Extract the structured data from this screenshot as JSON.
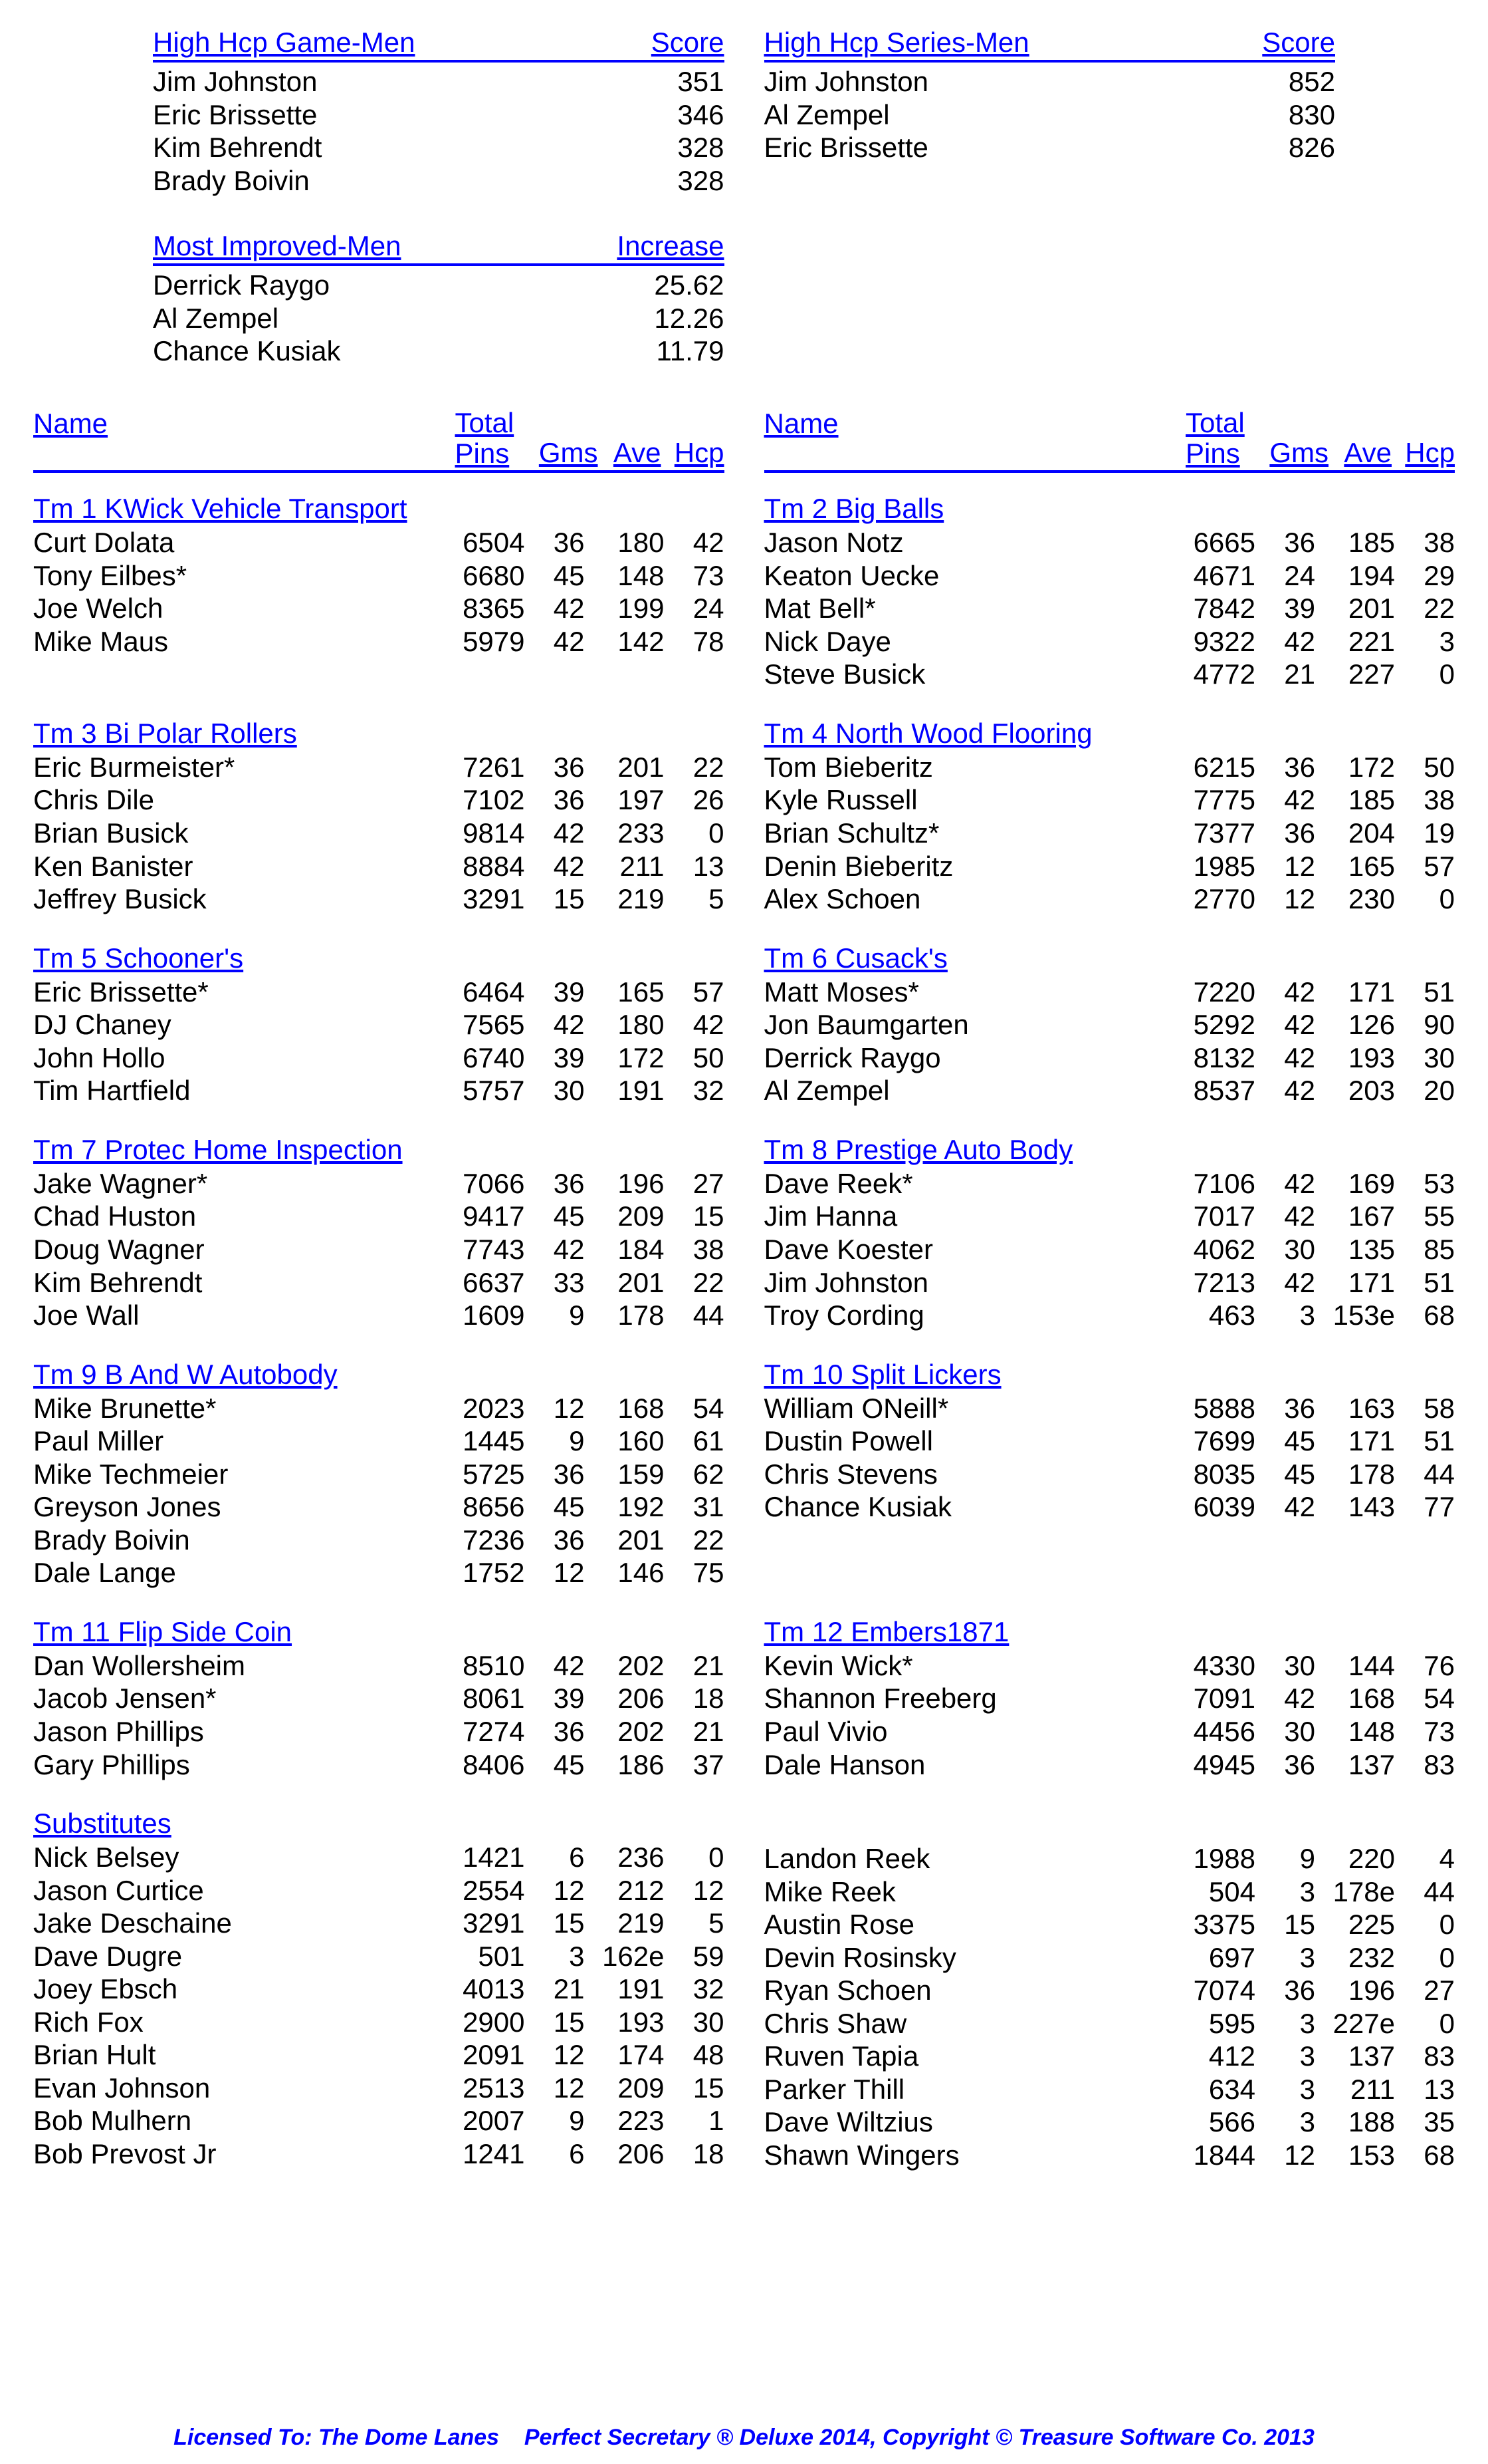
{
  "hhg_men": {
    "title_left": "High Hcp Game-Men",
    "title_right": "Score",
    "rows": [
      {
        "name": "Jim Johnston",
        "score": "351"
      },
      {
        "name": "Eric Brissette",
        "score": "346"
      },
      {
        "name": "Kim Behrendt",
        "score": "328"
      },
      {
        "name": "Brady Boivin",
        "score": "328"
      }
    ]
  },
  "hhs_men": {
    "title_left": "High Hcp Series-Men",
    "title_right": "Score",
    "rows": [
      {
        "name": "Jim Johnston",
        "score": "852"
      },
      {
        "name": "Al Zempel",
        "score": "830"
      },
      {
        "name": "Eric Brissette",
        "score": "826"
      }
    ]
  },
  "improved": {
    "title_left": "Most Improved-Men",
    "title_right": "Increase",
    "rows": [
      {
        "name": "Derrick Raygo",
        "val": "25.62"
      },
      {
        "name": "Al Zempel",
        "val": "12.26"
      },
      {
        "name": "Chance Kusiak",
        "val": "11.79"
      }
    ]
  },
  "stats_header": {
    "name": "Name",
    "total": "Total",
    "pins": "Pins",
    "gms": "Gms",
    "ave": "Ave",
    "hcp": "Hcp"
  },
  "team_rows": [
    {
      "left": {
        "name": "Tm 1 KWick Vehicle Transport",
        "players": [
          {
            "name": "Curt Dolata",
            "pins": "6504",
            "gms": "36",
            "ave": "180",
            "hcp": "42"
          },
          {
            "name": "Tony Eilbes*",
            "pins": "6680",
            "gms": "45",
            "ave": "148",
            "hcp": "73"
          },
          {
            "name": "Joe Welch",
            "pins": "8365",
            "gms": "42",
            "ave": "199",
            "hcp": "24"
          },
          {
            "name": "Mike Maus",
            "pins": "5979",
            "gms": "42",
            "ave": "142",
            "hcp": "78"
          }
        ]
      },
      "right": {
        "name": "Tm 2 Big Balls",
        "players": [
          {
            "name": "Jason Notz",
            "pins": "6665",
            "gms": "36",
            "ave": "185",
            "hcp": "38"
          },
          {
            "name": "Keaton Uecke",
            "pins": "4671",
            "gms": "24",
            "ave": "194",
            "hcp": "29"
          },
          {
            "name": "Mat Bell*",
            "pins": "7842",
            "gms": "39",
            "ave": "201",
            "hcp": "22"
          },
          {
            "name": "Nick Daye",
            "pins": "9322",
            "gms": "42",
            "ave": "221",
            "hcp": "3"
          },
          {
            "name": "Steve Busick",
            "pins": "4772",
            "gms": "21",
            "ave": "227",
            "hcp": "0"
          }
        ]
      }
    },
    {
      "left": {
        "name": "Tm 3 Bi Polar Rollers",
        "players": [
          {
            "name": "Eric Burmeister*",
            "pins": "7261",
            "gms": "36",
            "ave": "201",
            "hcp": "22"
          },
          {
            "name": "Chris Dile",
            "pins": "7102",
            "gms": "36",
            "ave": "197",
            "hcp": "26"
          },
          {
            "name": "Brian Busick",
            "pins": "9814",
            "gms": "42",
            "ave": "233",
            "hcp": "0"
          },
          {
            "name": "Ken Banister",
            "pins": "8884",
            "gms": "42",
            "ave": "211",
            "hcp": "13"
          },
          {
            "name": "Jeffrey Busick",
            "pins": "3291",
            "gms": "15",
            "ave": "219",
            "hcp": "5"
          }
        ]
      },
      "right": {
        "name": "Tm 4 North Wood Flooring",
        "players": [
          {
            "name": "Tom Bieberitz",
            "pins": "6215",
            "gms": "36",
            "ave": "172",
            "hcp": "50"
          },
          {
            "name": "Kyle Russell",
            "pins": "7775",
            "gms": "42",
            "ave": "185",
            "hcp": "38"
          },
          {
            "name": "Brian Schultz*",
            "pins": "7377",
            "gms": "36",
            "ave": "204",
            "hcp": "19"
          },
          {
            "name": "Denin Bieberitz",
            "pins": "1985",
            "gms": "12",
            "ave": "165",
            "hcp": "57"
          },
          {
            "name": "Alex Schoen",
            "pins": "2770",
            "gms": "12",
            "ave": "230",
            "hcp": "0"
          }
        ]
      }
    },
    {
      "left": {
        "name": "Tm 5 Schooner's",
        "players": [
          {
            "name": "Eric Brissette*",
            "pins": "6464",
            "gms": "39",
            "ave": "165",
            "hcp": "57"
          },
          {
            "name": "DJ Chaney",
            "pins": "7565",
            "gms": "42",
            "ave": "180",
            "hcp": "42"
          },
          {
            "name": "John Hollo",
            "pins": "6740",
            "gms": "39",
            "ave": "172",
            "hcp": "50"
          },
          {
            "name": "Tim Hartfield",
            "pins": "5757",
            "gms": "30",
            "ave": "191",
            "hcp": "32"
          }
        ]
      },
      "right": {
        "name": "Tm 6 Cusack's",
        "players": [
          {
            "name": "Matt Moses*",
            "pins": "7220",
            "gms": "42",
            "ave": "171",
            "hcp": "51"
          },
          {
            "name": "Jon Baumgarten",
            "pins": "5292",
            "gms": "42",
            "ave": "126",
            "hcp": "90"
          },
          {
            "name": "Derrick Raygo",
            "pins": "8132",
            "gms": "42",
            "ave": "193",
            "hcp": "30"
          },
          {
            "name": "Al Zempel",
            "pins": "8537",
            "gms": "42",
            "ave": "203",
            "hcp": "20"
          }
        ]
      }
    },
    {
      "left": {
        "name": "Tm 7 Protec Home Inspection",
        "players": [
          {
            "name": "Jake Wagner*",
            "pins": "7066",
            "gms": "36",
            "ave": "196",
            "hcp": "27"
          },
          {
            "name": "Chad Huston",
            "pins": "9417",
            "gms": "45",
            "ave": "209",
            "hcp": "15"
          },
          {
            "name": "Doug Wagner",
            "pins": "7743",
            "gms": "42",
            "ave": "184",
            "hcp": "38"
          },
          {
            "name": "Kim Behrendt",
            "pins": "6637",
            "gms": "33",
            "ave": "201",
            "hcp": "22"
          },
          {
            "name": "Joe Wall",
            "pins": "1609",
            "gms": "9",
            "ave": "178",
            "hcp": "44"
          }
        ]
      },
      "right": {
        "name": "Tm 8 Prestige Auto Body",
        "players": [
          {
            "name": "Dave Reek*",
            "pins": "7106",
            "gms": "42",
            "ave": "169",
            "hcp": "53"
          },
          {
            "name": "Jim Hanna",
            "pins": "7017",
            "gms": "42",
            "ave": "167",
            "hcp": "55"
          },
          {
            "name": "Dave Koester",
            "pins": "4062",
            "gms": "30",
            "ave": "135",
            "hcp": "85"
          },
          {
            "name": "Jim Johnston",
            "pins": "7213",
            "gms": "42",
            "ave": "171",
            "hcp": "51"
          },
          {
            "name": "Troy Cording",
            "pins": "463",
            "gms": "3",
            "ave": "153e",
            "hcp": "68"
          }
        ]
      }
    },
    {
      "left": {
        "name": "Tm 9 B And W Autobody",
        "players": [
          {
            "name": "Mike Brunette*",
            "pins": "2023",
            "gms": "12",
            "ave": "168",
            "hcp": "54"
          },
          {
            "name": "Paul Miller",
            "pins": "1445",
            "gms": "9",
            "ave": "160",
            "hcp": "61"
          },
          {
            "name": "Mike Techmeier",
            "pins": "5725",
            "gms": "36",
            "ave": "159",
            "hcp": "62"
          },
          {
            "name": "Greyson Jones",
            "pins": "8656",
            "gms": "45",
            "ave": "192",
            "hcp": "31"
          },
          {
            "name": "Brady Boivin",
            "pins": "7236",
            "gms": "36",
            "ave": "201",
            "hcp": "22"
          },
          {
            "name": "Dale Lange",
            "pins": "1752",
            "gms": "12",
            "ave": "146",
            "hcp": "75"
          }
        ]
      },
      "right": {
        "name": "Tm 10 Split Lickers",
        "players": [
          {
            "name": "William ONeill*",
            "pins": "5888",
            "gms": "36",
            "ave": "163",
            "hcp": "58"
          },
          {
            "name": "Dustin Powell",
            "pins": "7699",
            "gms": "45",
            "ave": "171",
            "hcp": "51"
          },
          {
            "name": "Chris Stevens",
            "pins": "8035",
            "gms": "45",
            "ave": "178",
            "hcp": "44"
          },
          {
            "name": "Chance Kusiak",
            "pins": "6039",
            "gms": "42",
            "ave": "143",
            "hcp": "77"
          }
        ]
      }
    },
    {
      "left": {
        "name": "Tm 11 Flip Side Coin",
        "players": [
          {
            "name": "Dan Wollersheim",
            "pins": "8510",
            "gms": "42",
            "ave": "202",
            "hcp": "21"
          },
          {
            "name": "Jacob Jensen*",
            "pins": "8061",
            "gms": "39",
            "ave": "206",
            "hcp": "18"
          },
          {
            "name": "Jason Phillips",
            "pins": "7274",
            "gms": "36",
            "ave": "202",
            "hcp": "21"
          },
          {
            "name": "Gary Phillips",
            "pins": "8406",
            "gms": "45",
            "ave": "186",
            "hcp": "37"
          }
        ]
      },
      "right": {
        "name": "Tm 12 Embers1871",
        "players": [
          {
            "name": "Kevin Wick*",
            "pins": "4330",
            "gms": "30",
            "ave": "144",
            "hcp": "76"
          },
          {
            "name": "Shannon Freeberg",
            "pins": "7091",
            "gms": "42",
            "ave": "168",
            "hcp": "54"
          },
          {
            "name": "Paul Vivio",
            "pins": "4456",
            "gms": "30",
            "ave": "148",
            "hcp": "73"
          },
          {
            "name": "Dale Hanson",
            "pins": "4945",
            "gms": "36",
            "ave": "137",
            "hcp": "83"
          }
        ]
      }
    }
  ],
  "subs": {
    "title": "Substitutes",
    "left": [
      {
        "name": "Nick Belsey",
        "pins": "1421",
        "gms": "6",
        "ave": "236",
        "hcp": "0"
      },
      {
        "name": "Jason Curtice",
        "pins": "2554",
        "gms": "12",
        "ave": "212",
        "hcp": "12"
      },
      {
        "name": "Jake Deschaine",
        "pins": "3291",
        "gms": "15",
        "ave": "219",
        "hcp": "5"
      },
      {
        "name": "Dave Dugre",
        "pins": "501",
        "gms": "3",
        "ave": "162e",
        "hcp": "59"
      },
      {
        "name": "Joey Ebsch",
        "pins": "4013",
        "gms": "21",
        "ave": "191",
        "hcp": "32"
      },
      {
        "name": "Rich Fox",
        "pins": "2900",
        "gms": "15",
        "ave": "193",
        "hcp": "30"
      },
      {
        "name": "Brian Hult",
        "pins": "2091",
        "gms": "12",
        "ave": "174",
        "hcp": "48"
      },
      {
        "name": "Evan Johnson",
        "pins": "2513",
        "gms": "12",
        "ave": "209",
        "hcp": "15"
      },
      {
        "name": "Bob Mulhern",
        "pins": "2007",
        "gms": "9",
        "ave": "223",
        "hcp": "1"
      },
      {
        "name": "Bob Prevost Jr",
        "pins": "1241",
        "gms": "6",
        "ave": "206",
        "hcp": "18"
      }
    ],
    "right": [
      {
        "name": "Landon Reek",
        "pins": "1988",
        "gms": "9",
        "ave": "220",
        "hcp": "4"
      },
      {
        "name": "Mike Reek",
        "pins": "504",
        "gms": "3",
        "ave": "178e",
        "hcp": "44"
      },
      {
        "name": "Austin Rose",
        "pins": "3375",
        "gms": "15",
        "ave": "225",
        "hcp": "0"
      },
      {
        "name": "Devin Rosinsky",
        "pins": "697",
        "gms": "3",
        "ave": "232",
        "hcp": "0"
      },
      {
        "name": "Ryan Schoen",
        "pins": "7074",
        "gms": "36",
        "ave": "196",
        "hcp": "27"
      },
      {
        "name": "Chris Shaw",
        "pins": "595",
        "gms": "3",
        "ave": "227e",
        "hcp": "0"
      },
      {
        "name": "Ruven Tapia",
        "pins": "412",
        "gms": "3",
        "ave": "137",
        "hcp": "83"
      },
      {
        "name": "Parker Thill",
        "pins": "634",
        "gms": "3",
        "ave": "211",
        "hcp": "13"
      },
      {
        "name": "Dave Wiltzius",
        "pins": "566",
        "gms": "3",
        "ave": "188",
        "hcp": "35"
      },
      {
        "name": "Shawn Wingers",
        "pins": "1844",
        "gms": "12",
        "ave": "153",
        "hcp": "68"
      }
    ]
  },
  "footer": "Licensed To: The Dome Lanes    Perfect Secretary ® Deluxe  2014, Copyright © Treasure Software Co. 2013"
}
